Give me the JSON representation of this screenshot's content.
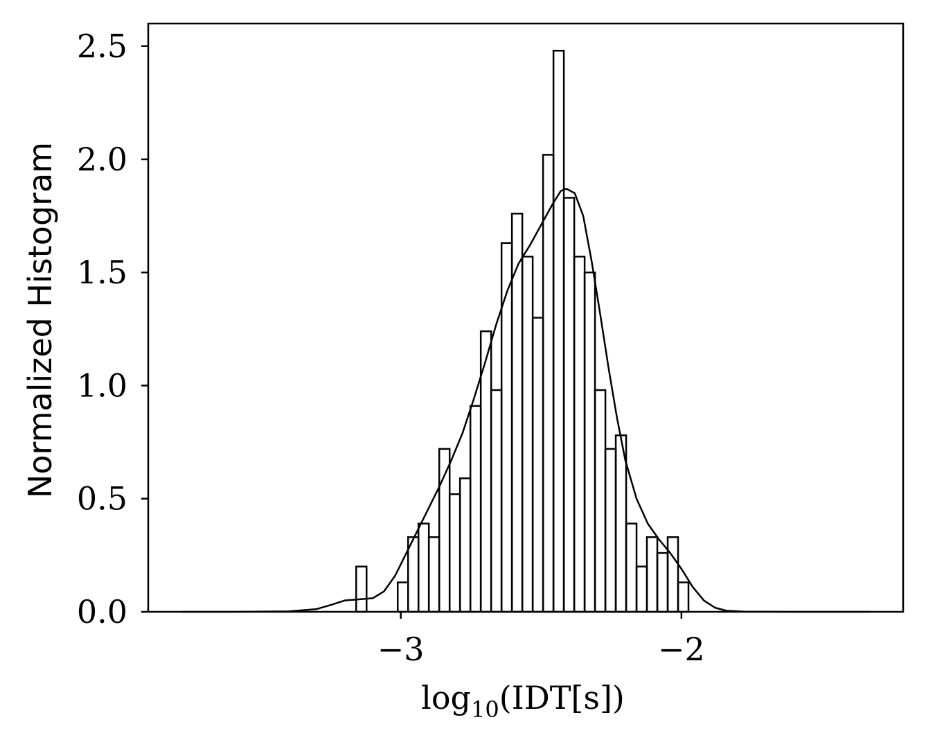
{
  "chart_data": {
    "type": "histogram",
    "xlabel_main": "log",
    "xlabel_sub": "10",
    "xlabel_rest": "(IDT[s])",
    "ylabel": "Normalized Histogram",
    "xlim": [
      -3.9,
      -1.21
    ],
    "ylim": [
      0.0,
      2.6
    ],
    "xticks": [
      {
        "value": -3,
        "label": "−3"
      },
      {
        "value": -2,
        "label": "−2"
      }
    ],
    "yticks": [
      {
        "value": 0.0,
        "label": "0.0"
      },
      {
        "value": 0.5,
        "label": "0.5"
      },
      {
        "value": 1.0,
        "label": "1.0"
      },
      {
        "value": 1.5,
        "label": "1.5"
      },
      {
        "value": 2.0,
        "label": "2.0"
      },
      {
        "value": 2.5,
        "label": "2.5"
      }
    ],
    "histogram": {
      "bin_edges": [
        -3.159,
        -3.122,
        -3.085,
        -3.048,
        -3.011,
        -2.974,
        -2.937,
        -2.9,
        -2.863,
        -2.826,
        -2.789,
        -2.752,
        -2.715,
        -2.678,
        -2.641,
        -2.604,
        -2.567,
        -2.53,
        -2.493,
        -2.456,
        -2.419,
        -2.382,
        -2.345,
        -2.308,
        -2.271,
        -2.234,
        -2.197,
        -2.16,
        -2.123,
        -2.086,
        -2.049,
        -2.012,
        -1.975,
        -1.938
      ],
      "values": [
        0.2,
        0.0,
        0.0,
        0.0,
        0.13,
        0.33,
        0.39,
        0.33,
        0.72,
        0.52,
        0.59,
        0.91,
        1.24,
        0.98,
        1.63,
        1.76,
        1.57,
        1.3,
        2.02,
        2.48,
        1.83,
        1.57,
        1.5,
        0.98,
        0.72,
        0.78,
        0.39,
        0.2,
        0.33,
        0.26,
        0.33,
        0.13,
        0.0
      ]
    },
    "kde": {
      "x": [
        -3.78,
        -3.6,
        -3.4,
        -3.3,
        -3.25,
        -3.2,
        -3.15,
        -3.1,
        -3.06,
        -3.02,
        -2.98,
        -2.94,
        -2.9,
        -2.86,
        -2.82,
        -2.78,
        -2.74,
        -2.7,
        -2.66,
        -2.62,
        -2.58,
        -2.54,
        -2.5,
        -2.46,
        -2.43,
        -2.41,
        -2.38,
        -2.35,
        -2.32,
        -2.29,
        -2.26,
        -2.23,
        -2.2,
        -2.16,
        -2.12,
        -2.08,
        -2.04,
        -2.0,
        -1.96,
        -1.92,
        -1.88,
        -1.84,
        -1.78,
        -1.6,
        -1.33
      ],
      "y": [
        0.0,
        0.0,
        0.002,
        0.012,
        0.03,
        0.05,
        0.055,
        0.06,
        0.09,
        0.16,
        0.26,
        0.36,
        0.46,
        0.56,
        0.67,
        0.79,
        0.94,
        1.1,
        1.27,
        1.42,
        1.54,
        1.62,
        1.71,
        1.8,
        1.86,
        1.87,
        1.85,
        1.75,
        1.55,
        1.32,
        1.08,
        0.86,
        0.67,
        0.5,
        0.39,
        0.32,
        0.26,
        0.19,
        0.11,
        0.05,
        0.018,
        0.005,
        0.001,
        0.0,
        0.0
      ]
    }
  }
}
